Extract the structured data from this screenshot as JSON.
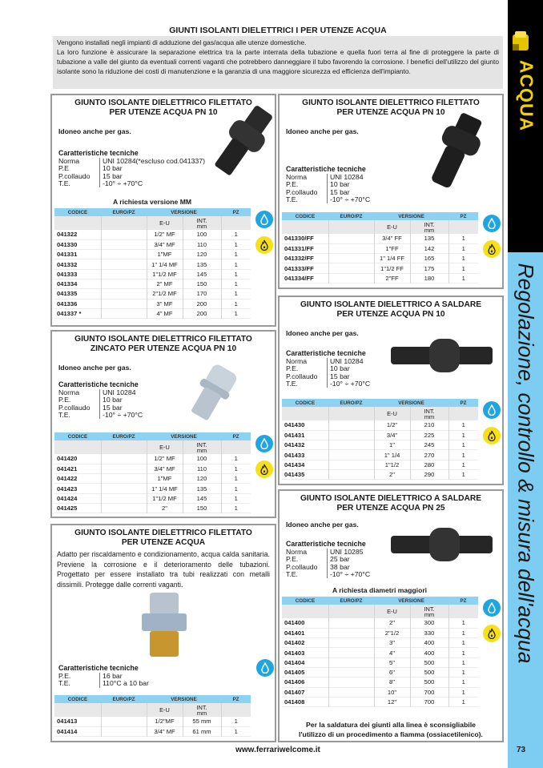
{
  "header": {
    "title": "GIUNTI ISOLANTI DIELETTRICI I PER UTENZE  ACQUA",
    "intro": [
      "Vengono installati negli impianti di adduzione del gas/acqua alle utenze domestiche.",
      "La loro funzione è assicurare la separazione elettrica tra la parte interrata della tubazione e quella fuori terra al fine di proteggere la parte di tubazione a valle del giunto da eventuali correnti vaganti che potrebbero danneggiare il tubo favorendo la corrosione. I benefici dell'utilizzo del giunto isolante sono la riduzione dei costi di manutenzione e la garanzia di una maggiore sicurezza ed efficienza dell'impianto."
    ]
  },
  "table_headers": {
    "codice": "CODICE",
    "euro": "EURO/PZ",
    "versione": "VERSIONE",
    "pz": "PZ",
    "eu": "E-U",
    "int": "INT.",
    "int_unit": "mm"
  },
  "specs_label": "Caratteristiche tecniche",
  "colors": {
    "water": "#1fa6e0",
    "gas": "#f7e017",
    "table_header": "#8ed2f2",
    "sidebar_black": "#000000",
    "sidebar_blue": "#7dcdf2",
    "sidebar_accent": "#f2d000"
  },
  "products": [
    {
      "id": "b1",
      "image": "black-threaded-joint",
      "title": [
        "GIUNTO ISOLANTE DIELETTRICO FILETTATO",
        "PER UTENZE  ACQUA PN 10"
      ],
      "note": "Idoneo anche per gas.",
      "specs": [
        [
          "Norma",
          "UNI 10284(*escluso cod.041337)"
        ],
        [
          "P.E",
          "10 bar"
        ],
        [
          "P.collaudo",
          "15 bar"
        ],
        [
          "T.E.",
          "-10°  ÷ +70°C"
        ]
      ],
      "caption": "A richiesta versione MM",
      "icons": [
        "water-drop",
        "gas-flame"
      ],
      "rows": [
        [
          "041322",
          "",
          "1/2\" MF",
          "100",
          "1"
        ],
        [
          "041330",
          "",
          "3/4\" MF",
          "110",
          "1"
        ],
        [
          "041331",
          "",
          "1\"MF",
          "120",
          "1"
        ],
        [
          "041332",
          "",
          "1\" 1/4 MF",
          "135",
          "1"
        ],
        [
          "041333",
          "",
          "1\"1/2 MF",
          "145",
          "1"
        ],
        [
          "041334",
          "",
          "2\" MF",
          "150",
          "1"
        ],
        [
          "041335",
          "",
          "2\"1/2 MF",
          "170",
          "1"
        ],
        [
          "041336",
          "",
          "3\" MF",
          "200",
          "1"
        ],
        [
          "041337 *",
          "",
          "4\" MF",
          "200",
          "1"
        ]
      ]
    },
    {
      "id": "b2",
      "image": "zinc-threaded-joint",
      "title": [
        "GIUNTO ISOLANTE DIELETTRICO FILETTATO",
        "ZINCATO PER UTENZE  ACQUA PN 10"
      ],
      "note": "Idoneo anche per gas.",
      "specs": [
        [
          "Norma",
          "UNI 10284"
        ],
        [
          "P.E.",
          "10 bar"
        ],
        [
          "P.collaudo",
          "15 bar"
        ],
        [
          "T.E.",
          "-10°  ÷ +70°C"
        ]
      ],
      "icons": [
        "water-drop",
        "gas-flame"
      ],
      "rows": [
        [
          "041420",
          "",
          "1/2\" MF",
          "100",
          "1"
        ],
        [
          "041421",
          "",
          "3/4\" MF",
          "110",
          "1"
        ],
        [
          "041422",
          "",
          "1\"MF",
          "120",
          "1"
        ],
        [
          "041423",
          "",
          "1\" 1/4 MF",
          "135",
          "1"
        ],
        [
          "041424",
          "",
          "1\"1/2 MF",
          "145",
          "1"
        ],
        [
          "041425",
          "",
          "2\"",
          "150",
          "1"
        ]
      ]
    },
    {
      "id": "b3",
      "image": "brass-union-joint",
      "title": [
        "GIUNTO ISOLANTE DIELETTRICO FILETTATO",
        "PER UTENZE  ACQUA"
      ],
      "description": "Adatto per riscaldamento e condizionamento, acqua calda sanitaria. Previene la corrosione e il deterioramento delle tubazioni. Progettato per essere installato tra tubi realizzati con metalli dissimili. Protegge dalle correnti vaganti.",
      "specs": [
        [
          "P.E.",
          "16 bar"
        ],
        [
          "T.E.",
          "110°C a 10 bar"
        ]
      ],
      "icons": [
        "water-drop"
      ],
      "rows": [
        [
          "041413",
          "",
          "1/2\"MF",
          "55 mm",
          "1"
        ],
        [
          "041414",
          "",
          "3/4\" MF",
          "61 mm",
          "1"
        ]
      ]
    },
    {
      "id": "b4",
      "image": "black-ff-joint",
      "title": [
        "GIUNTO ISOLANTE DIELETTRICO FILETTATO",
        "PER UTENZE  ACQUA PN 10"
      ],
      "note": "Idoneo anche per gas.",
      "specs": [
        [
          "Norma",
          "UNI 10284"
        ],
        [
          "P.E.",
          "10 bar"
        ],
        [
          "P.collaudo",
          "15 bar"
        ],
        [
          "T.E.",
          "-10°  ÷ +70°C"
        ]
      ],
      "icons": [
        "water-drop",
        "gas-flame"
      ],
      "rows": [
        [
          "041330/FF",
          "",
          "3/4\" FF",
          "135",
          "1"
        ],
        [
          "041331/FF",
          "",
          "1\"FF",
          "142",
          "1"
        ],
        [
          "041332/FF",
          "",
          "1\" 1/4 FF",
          "165",
          "1"
        ],
        [
          "041333/FF",
          "",
          "1\"1/2 FF",
          "175",
          "1"
        ],
        [
          "041334/FF",
          "",
          "2\"FF",
          "180",
          "1"
        ]
      ]
    },
    {
      "id": "b5",
      "image": "weld-joint",
      "title": [
        "GIUNTO ISOLANTE DIELETTRICO A SALDARE",
        "PER UTENZE  ACQUA PN 10"
      ],
      "note": "Idoneo anche per gas.",
      "specs": [
        [
          "Norma",
          "UNI 10284"
        ],
        [
          "P.E.",
          "10 bar"
        ],
        [
          "P.collaudo",
          "15 bar"
        ],
        [
          "T.E.",
          "-10°  ÷ +70°C"
        ]
      ],
      "icons": [
        "water-drop",
        "gas-flame"
      ],
      "rows": [
        [
          "041430",
          "",
          "1/2\"",
          "210",
          "1"
        ],
        [
          "041431",
          "",
          "3/4\"",
          "225",
          "1"
        ],
        [
          "041432",
          "",
          "1\"",
          "245",
          "1"
        ],
        [
          "041433",
          "",
          "1\" 1/4",
          "270",
          "1"
        ],
        [
          "041434",
          "",
          "1\"1/2",
          "280",
          "1"
        ],
        [
          "041435",
          "",
          "2\"",
          "290",
          "1"
        ]
      ]
    },
    {
      "id": "b6",
      "image": "weld-joint",
      "title": [
        "GIUNTO ISOLANTE DIELETTRICO A SALDARE",
        "PER UTENZE  ACQUA PN 25"
      ],
      "note": "Idoneo anche per gas.",
      "specs": [
        [
          "Norma",
          "UNI 10285"
        ],
        [
          "P.E.",
          "25 bar"
        ],
        [
          "P.collaudo",
          "38 bar"
        ],
        [
          "T.E.",
          "-10° ÷ +70°C"
        ]
      ],
      "caption": "A richiesta diametri maggiori",
      "icons": [
        "water-drop",
        "gas-flame"
      ],
      "rows": [
        [
          "041400",
          "",
          "2\"",
          "300",
          "1"
        ],
        [
          "041401",
          "",
          "2\"1/2",
          "330",
          "1"
        ],
        [
          "041402",
          "",
          "3\"",
          "400",
          "1"
        ],
        [
          "041403",
          "",
          "4\"",
          "400",
          "1"
        ],
        [
          "041404",
          "",
          "5\"",
          "500",
          "1"
        ],
        [
          "041405",
          "",
          "6\"",
          "500",
          "1"
        ],
        [
          "041406",
          "",
          "8\"",
          "500",
          "1"
        ],
        [
          "041407",
          "",
          "10\"",
          "700",
          "1"
        ],
        [
          "041408",
          "",
          "12\"",
          "700",
          "1"
        ]
      ],
      "footnote": [
        "Per la saldatura dei giunti alla linea è sconsigliabile",
        "l'utilizzo di un procedimento a fiamma (ossiacetilenico)."
      ]
    }
  ],
  "sidebar": {
    "section": "ACQUA",
    "chapter": "Regolazione, controllo & misura dell'acqua",
    "logo": "yellow-valve-icon"
  },
  "footer": {
    "url": "www.ferrariwelcome.it",
    "page_number": "73"
  }
}
